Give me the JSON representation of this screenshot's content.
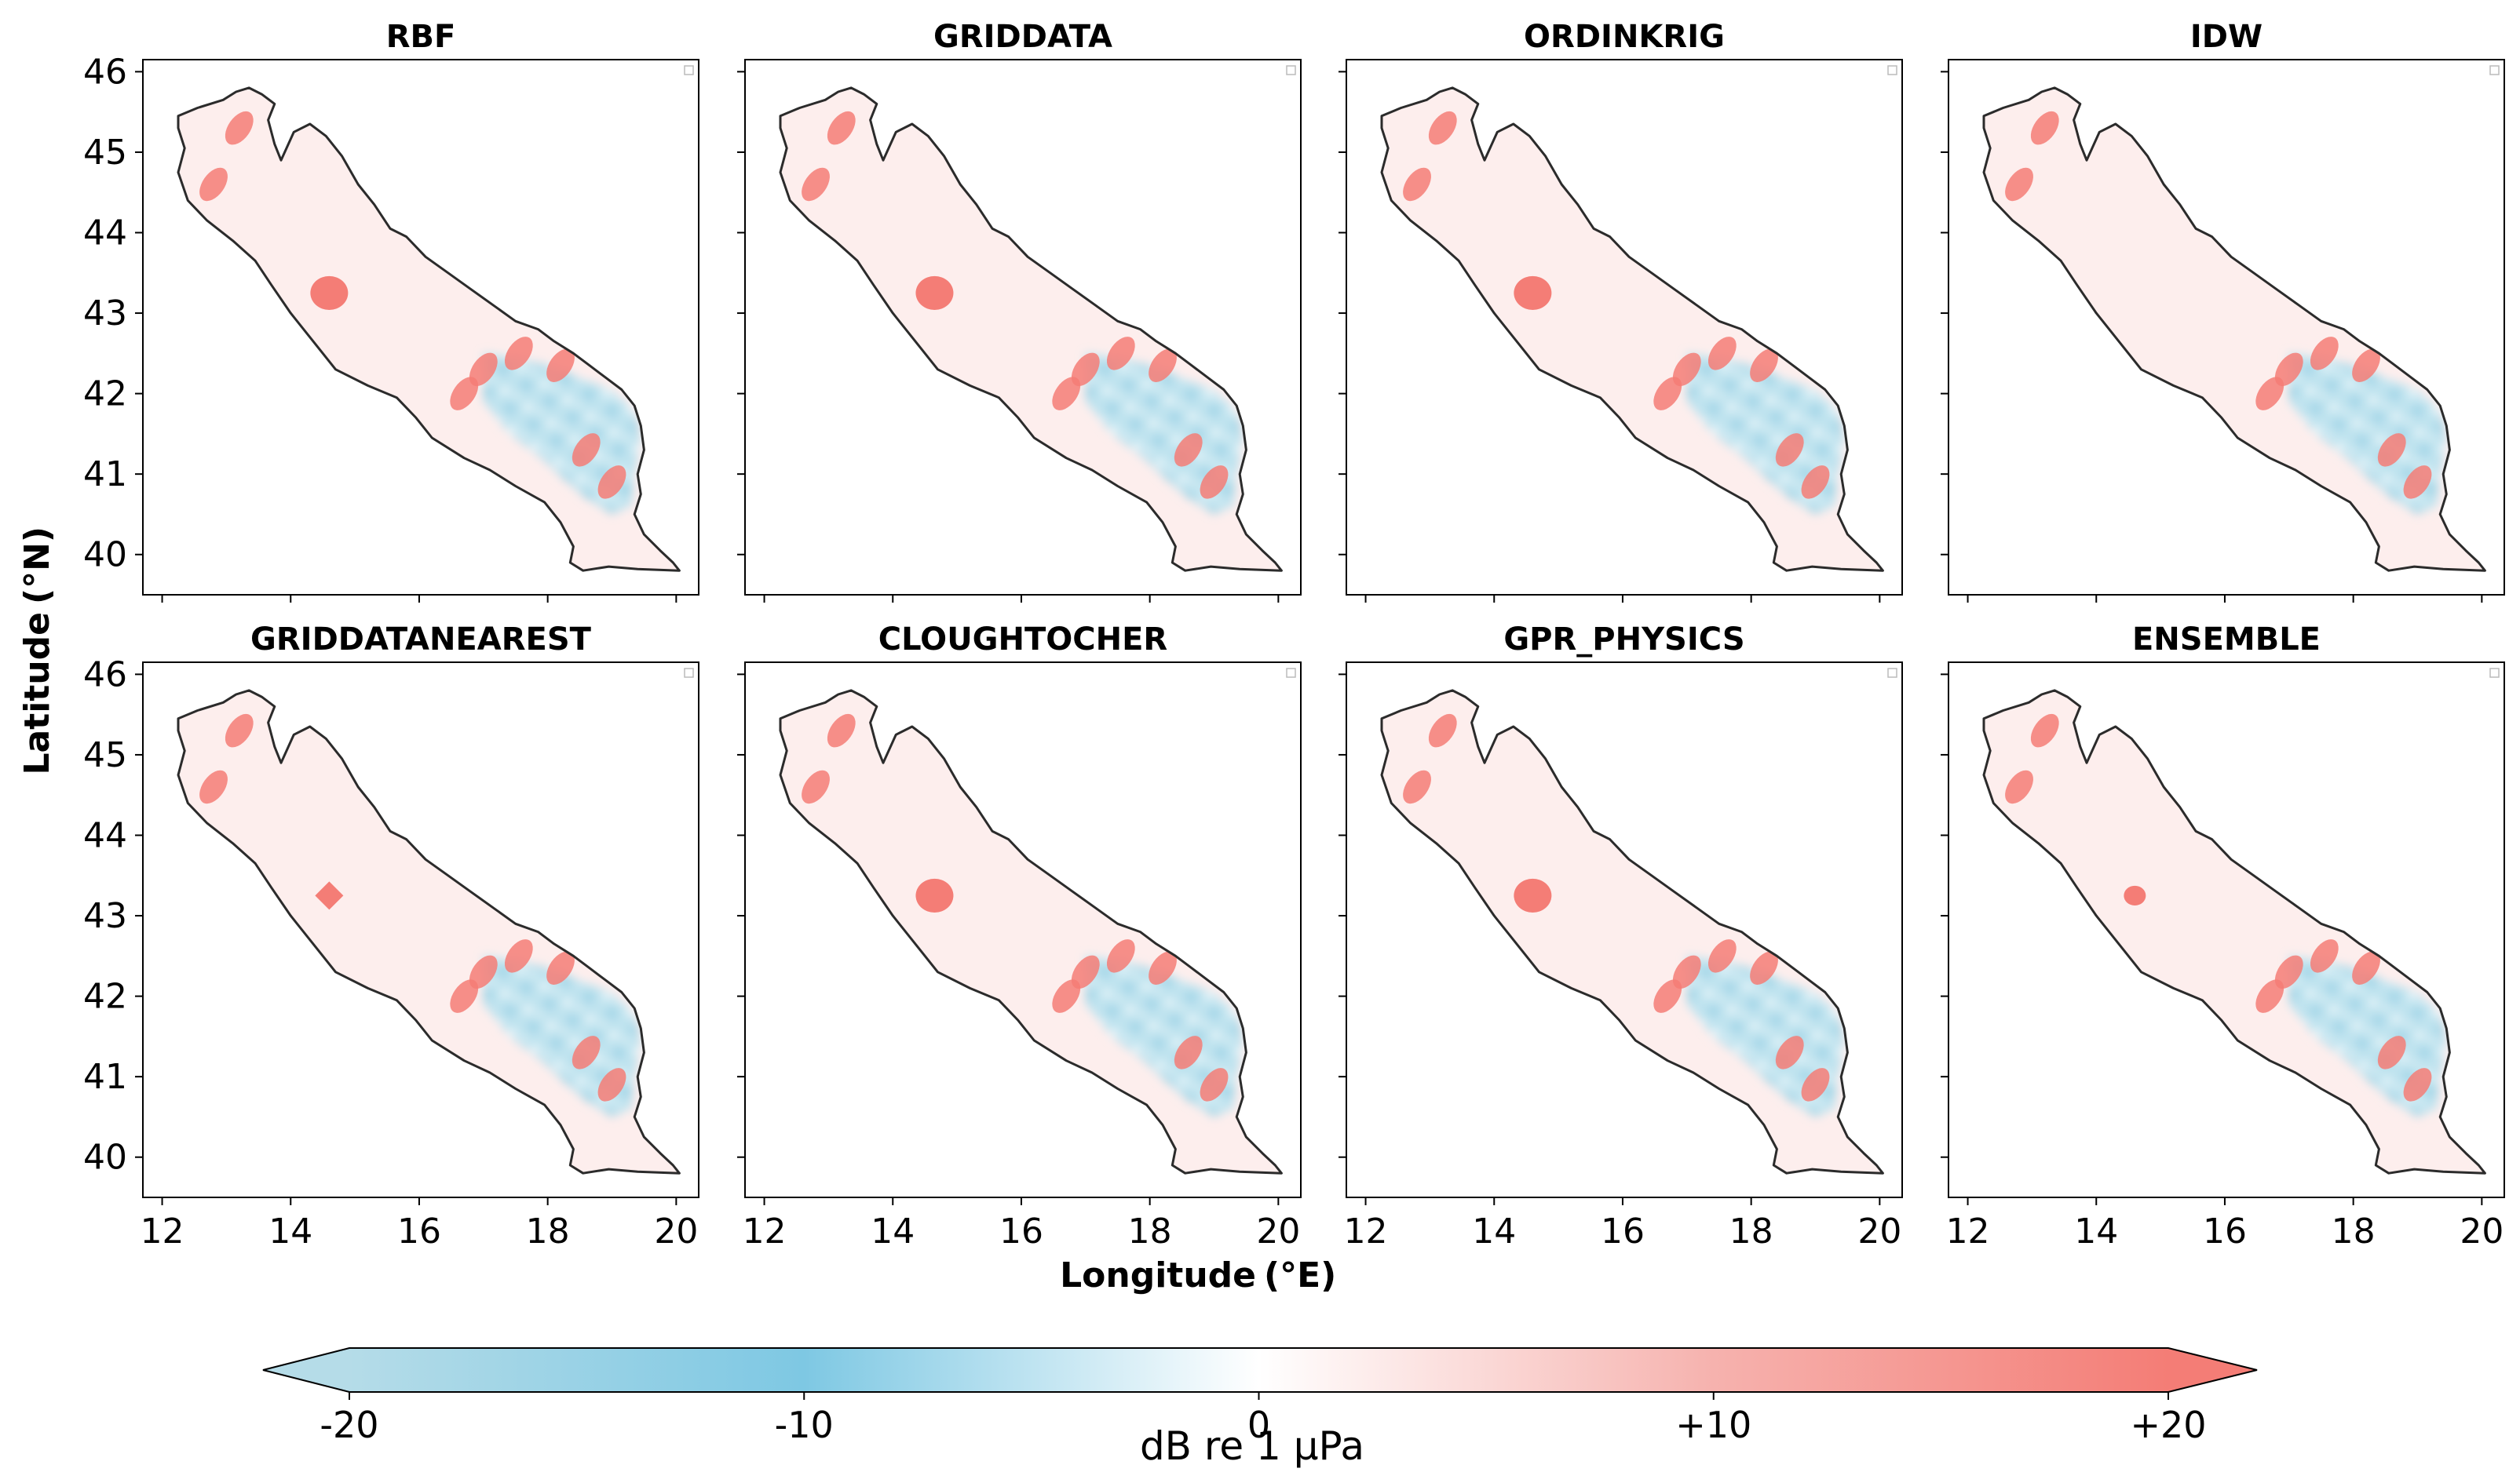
{
  "figure": {
    "xlabel": "Longitude",
    "xlabel_unit": "(°E)",
    "ylabel": "Latitude",
    "ylabel_unit": "(°N)",
    "x_ticks": [
      "12",
      "14",
      "16",
      "18",
      "20"
    ],
    "y_ticks": [
      "40",
      "41",
      "42",
      "43",
      "44",
      "45",
      "46"
    ]
  },
  "panels": [
    {
      "title": "RBF",
      "hotspot": {
        "lon": 14.6,
        "lat": 43.25,
        "shape": "circle"
      }
    },
    {
      "title": "GRIDDATA",
      "hotspot": {
        "lon": 14.65,
        "lat": 43.25,
        "shape": "circle"
      }
    },
    {
      "title": "ORDINKRIG",
      "hotspot": {
        "lon": 14.6,
        "lat": 43.25,
        "shape": "circle"
      }
    },
    {
      "title": "IDW",
      "hotspot": null
    },
    {
      "title": "GRIDDATANEAREST",
      "hotspot": {
        "lon": 14.6,
        "lat": 43.25,
        "shape": "diamond"
      }
    },
    {
      "title": "CLOUGHTOCHER",
      "hotspot": {
        "lon": 14.65,
        "lat": 43.25,
        "shape": "circle"
      }
    },
    {
      "title": "GPR_PHYSICS",
      "hotspot": {
        "lon": 14.6,
        "lat": 43.25,
        "shape": "circle"
      }
    },
    {
      "title": "ENSEMBLE",
      "hotspot": {
        "lon": 14.6,
        "lat": 43.25,
        "shape": "small-circle"
      }
    }
  ],
  "colorbar": {
    "label": "dB re 1 μPa",
    "ticks": [
      "-20",
      "-10",
      "0",
      "+10",
      "+20"
    ],
    "range": [
      -20,
      20
    ],
    "colors": {
      "negative": "#7ec8e3",
      "zero": "#ffffff",
      "positive": "#f47d76"
    }
  }
}
